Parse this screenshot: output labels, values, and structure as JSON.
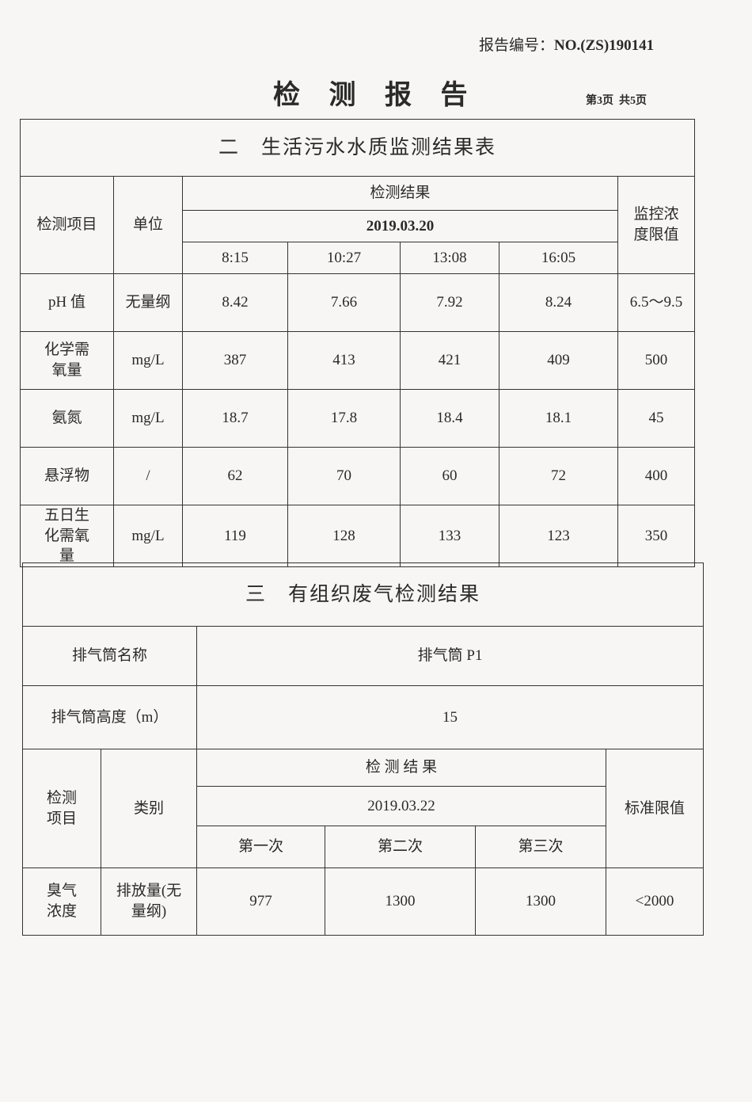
{
  "header": {
    "report_no_label": "报告编号：",
    "report_no": "NO.(ZS)190141",
    "title": "检 测 报 告",
    "page": "第3页",
    "total": "共5页"
  },
  "water": {
    "title": "二　生活污水水质监测结果表",
    "col_item": "检测项目",
    "col_unit": "单位",
    "col_results": "检测结果",
    "date": "2019.03.20",
    "col_limit": "监控浓度限值",
    "times": [
      "8:15",
      "10:27",
      "13:08",
      "16:05"
    ],
    "rows": [
      {
        "item": "pH 值",
        "unit": "无量纲",
        "values": [
          "8.42",
          "7.66",
          "7.92",
          "8.24"
        ],
        "limit": "6.5～9.5"
      },
      {
        "item": "化学需氧量",
        "unit": "mg/L",
        "values": [
          "387",
          "413",
          "421",
          "409"
        ],
        "limit": "500"
      },
      {
        "item": "氨氮",
        "unit": "mg/L",
        "values": [
          "18.7",
          "17.8",
          "18.4",
          "18.1"
        ],
        "limit": "45"
      },
      {
        "item": "悬浮物",
        "unit": "/",
        "values": [
          "62",
          "70",
          "60",
          "72"
        ],
        "limit": "400"
      },
      {
        "item": "五日生化需氧量",
        "unit": "mg/L",
        "values": [
          "119",
          "128",
          "133",
          "123"
        ],
        "limit": "350"
      }
    ]
  },
  "gas": {
    "title": "三　有组织废气检测结果",
    "stack_name_label": "排气筒名称",
    "stack_name": "排气筒 P1",
    "stack_height_label": "排气筒高度（m）",
    "stack_height": "15",
    "col_item": "检测项目",
    "col_type": "类别",
    "col_results": "检 测 结 果",
    "date": "2019.03.22",
    "col_limit": "标准限值",
    "runs": [
      "第一次",
      "第二次",
      "第三次"
    ],
    "row": {
      "item": "臭气浓度",
      "type": "排放量(无量纲)",
      "values": [
        "977",
        "1300",
        "1300"
      ],
      "limit": "<2000"
    }
  }
}
